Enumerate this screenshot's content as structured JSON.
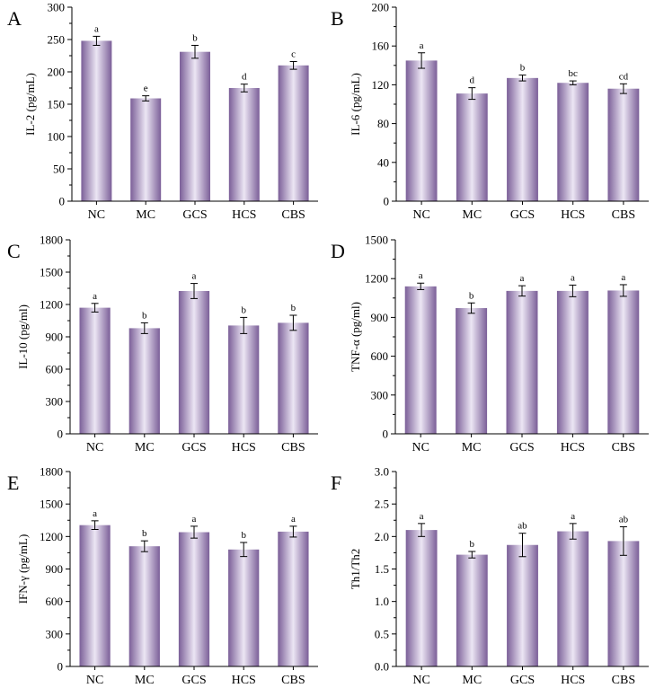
{
  "colors": {
    "bar_dark": "#7b5f98",
    "bar_light": "#ece6f4",
    "axis": "#000000"
  },
  "chart_data": [
    {
      "type": "bar",
      "panel": "A",
      "ylabel": "IL-2 (pg/mL)",
      "ylim": [
        0,
        300
      ],
      "yticks": [
        0,
        50,
        100,
        150,
        200,
        250,
        300
      ],
      "categories": [
        "NC",
        "MC",
        "GCS",
        "HCS",
        "CBS"
      ],
      "values": [
        248,
        159,
        231,
        175,
        210
      ],
      "errors": [
        7,
        4,
        10,
        6,
        6
      ],
      "letters": [
        "a",
        "e",
        "b",
        "d",
        "c"
      ]
    },
    {
      "type": "bar",
      "panel": "B",
      "ylabel": "IL-6 (pg/mL)",
      "ylim": [
        0,
        200
      ],
      "yticks": [
        0,
        40,
        80,
        120,
        160,
        200
      ],
      "categories": [
        "NC",
        "MC",
        "GCS",
        "HCS",
        "CBS"
      ],
      "values": [
        145,
        111,
        127,
        122,
        116
      ],
      "errors": [
        8,
        6,
        3,
        2,
        5
      ],
      "letters": [
        "a",
        "d",
        "b",
        "bc",
        "cd"
      ]
    },
    {
      "type": "bar",
      "panel": "C",
      "ylabel": "IL-10 (pg/ml)",
      "ylim": [
        0,
        1800
      ],
      "yticks": [
        0,
        300,
        600,
        900,
        1200,
        1500,
        1800
      ],
      "categories": [
        "NC",
        "MC",
        "GCS",
        "HCS",
        "CBS"
      ],
      "values": [
        1170,
        980,
        1325,
        1005,
        1030
      ],
      "errors": [
        40,
        50,
        70,
        75,
        70
      ],
      "letters": [
        "a",
        "b",
        "a",
        "b",
        "b"
      ]
    },
    {
      "type": "bar",
      "panel": "D",
      "ylabel": "TNF-α (pg/ml)",
      "ylim": [
        0,
        1500
      ],
      "yticks": [
        0,
        300,
        600,
        900,
        1200,
        1500
      ],
      "categories": [
        "NC",
        "MC",
        "GCS",
        "HCS",
        "CBS"
      ],
      "values": [
        1140,
        972,
        1105,
        1105,
        1108
      ],
      "errors": [
        25,
        40,
        40,
        45,
        45
      ],
      "letters": [
        "a",
        "b",
        "a",
        "a",
        "a"
      ]
    },
    {
      "type": "bar",
      "panel": "E",
      "ylabel": "IFN-γ (pg/mL)",
      "ylim": [
        0,
        1800
      ],
      "yticks": [
        0,
        300,
        600,
        900,
        1200,
        1500,
        1800
      ],
      "categories": [
        "NC",
        "MC",
        "GCS",
        "HCS",
        "CBS"
      ],
      "values": [
        1305,
        1110,
        1240,
        1080,
        1245
      ],
      "errors": [
        40,
        50,
        55,
        65,
        50
      ],
      "letters": [
        "a",
        "b",
        "a",
        "b",
        "a"
      ]
    },
    {
      "type": "bar",
      "panel": "F",
      "ylabel": "Th1/Th2",
      "ylim": [
        0,
        3.0
      ],
      "yticks": [
        "0.0",
        "0.5",
        "1.0",
        "1.5",
        "2.0",
        "2.5",
        "3.0"
      ],
      "categories": [
        "NC",
        "MC",
        "GCS",
        "HCS",
        "CBS"
      ],
      "values": [
        2.1,
        1.72,
        1.87,
        2.08,
        1.93
      ],
      "errors": [
        0.1,
        0.05,
        0.18,
        0.12,
        0.22
      ],
      "letters": [
        "a",
        "b",
        "ab",
        "a",
        "ab"
      ]
    }
  ]
}
